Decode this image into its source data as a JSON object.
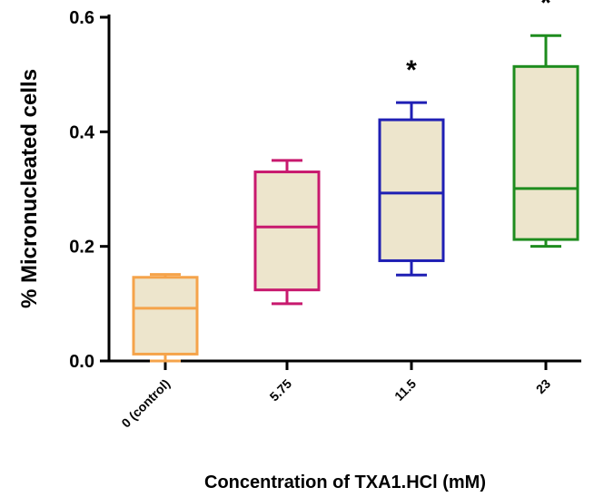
{
  "chart_data": {
    "type": "box",
    "xlabel": "Concentration of TXA1.HCl (mM)",
    "ylabel": "% Micronucleated cells",
    "ylim": [
      0,
      0.6
    ],
    "yticks": [
      "0.0",
      "0.2",
      "0.4",
      "0.6"
    ],
    "box_fill": "#ede5cc",
    "categories": [
      "0 (control)",
      "5.75",
      "11.5",
      "23"
    ],
    "boxes": [
      {
        "category": "0 (control)",
        "min": 0.0,
        "q1": 0.012,
        "median": 0.092,
        "q3": 0.146,
        "max": 0.151,
        "color": "#f5a34a",
        "annotation": ""
      },
      {
        "category": "5.75",
        "min": 0.1,
        "q1": 0.124,
        "median": 0.234,
        "q3": 0.33,
        "max": 0.35,
        "color": "#c8196e",
        "annotation": ""
      },
      {
        "category": "11.5",
        "min": 0.15,
        "q1": 0.175,
        "median": 0.293,
        "q3": 0.421,
        "max": 0.451,
        "color": "#1f1fb4",
        "annotation": "*"
      },
      {
        "category": "23",
        "min": 0.2,
        "q1": 0.212,
        "median": 0.301,
        "q3": 0.514,
        "max": 0.568,
        "color": "#1e8c1e",
        "annotation": "*"
      }
    ]
  }
}
